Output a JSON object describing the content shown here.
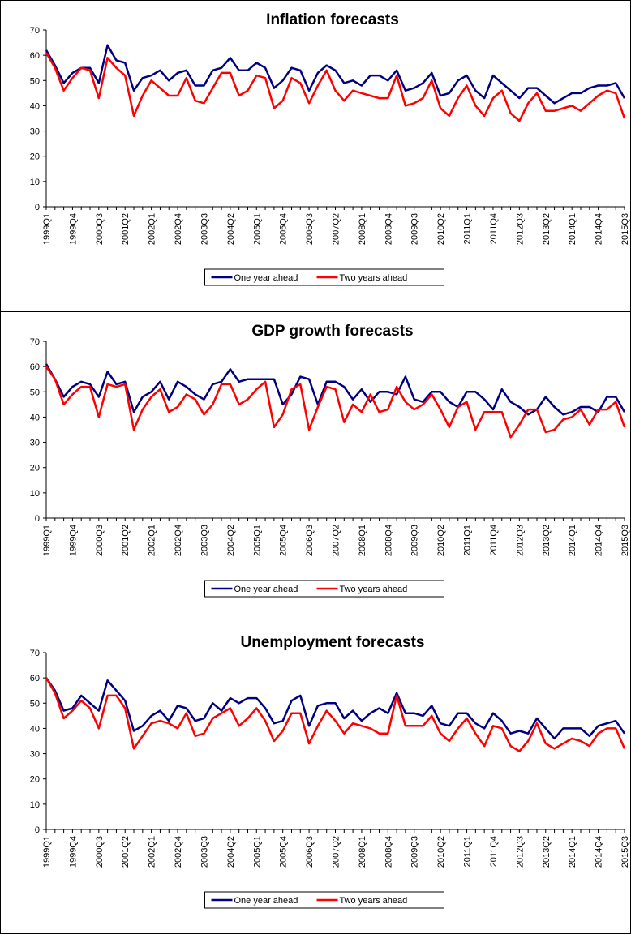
{
  "chart_data": [
    {
      "type": "line",
      "title": "Inflation forecasts",
      "categories": [
        "1999Q1",
        null,
        null,
        "1999Q4",
        null,
        null,
        "2000Q3",
        null,
        null,
        "2001Q2",
        null,
        null,
        "2002Q1",
        null,
        null,
        "2002Q4",
        null,
        null,
        "2003Q3",
        null,
        null,
        "2004Q2",
        null,
        null,
        "2005Q1",
        null,
        null,
        "2005Q4",
        null,
        null,
        "2006Q3",
        null,
        null,
        "2007Q2",
        null,
        null,
        "2008Q1",
        null,
        null,
        "2008Q4",
        null,
        null,
        "2009Q3",
        null,
        null,
        "2010Q2",
        null,
        null,
        "2011Q1",
        null,
        null,
        "2011Q4",
        null,
        null,
        "2012Q3",
        null,
        null,
        "2013Q2",
        null,
        null,
        "2014Q1",
        null,
        null,
        "2014Q4",
        null,
        null,
        "2015Q3"
      ],
      "series": [
        {
          "name": "One year ahead",
          "color": "#000080",
          "values": [
            62,
            56,
            49,
            53,
            55,
            55,
            49,
            64,
            58,
            57,
            46,
            51,
            52,
            54,
            50,
            53,
            54,
            48,
            48,
            54,
            55,
            59,
            54,
            54,
            57,
            55,
            47,
            50,
            55,
            54,
            46,
            53,
            56,
            54,
            49,
            50,
            48,
            52,
            52,
            50,
            54,
            46,
            47,
            49,
            53,
            44,
            45,
            50,
            52,
            46,
            43,
            52,
            49,
            46,
            43,
            47,
            47,
            44,
            41,
            43,
            45,
            45,
            47,
            48,
            48,
            49,
            43
          ]
        },
        {
          "name": "Two years ahead",
          "color": "#ff0000",
          "values": [
            61,
            55,
            46,
            51,
            55,
            54,
            43,
            59,
            55,
            52,
            36,
            44,
            50,
            47,
            44,
            44,
            51,
            42,
            41,
            47,
            53,
            53,
            44,
            46,
            52,
            51,
            39,
            42,
            51,
            49,
            41,
            48,
            54,
            46,
            42,
            46,
            45,
            44,
            43,
            43,
            52,
            40,
            41,
            43,
            50,
            39,
            36,
            43,
            48,
            40,
            36,
            43,
            46,
            37,
            34,
            41,
            45,
            38,
            38,
            39,
            40,
            38,
            41,
            44,
            46,
            45,
            35
          ]
        }
      ],
      "ylim": [
        0,
        70
      ],
      "yticks": [
        0,
        10,
        20,
        30,
        40,
        50,
        60,
        70
      ],
      "grid": false,
      "legend": "bottom"
    },
    {
      "type": "line",
      "title": "GDP growth forecasts",
      "categories": [
        "1999Q1",
        null,
        null,
        "1999Q4",
        null,
        null,
        "2000Q3",
        null,
        null,
        "2001Q2",
        null,
        null,
        "2002Q1",
        null,
        null,
        "2002Q4",
        null,
        null,
        "2003Q3",
        null,
        null,
        "2004Q2",
        null,
        null,
        "2005Q1",
        null,
        null,
        "2005Q4",
        null,
        null,
        "2006Q3",
        null,
        null,
        "2007Q2",
        null,
        null,
        "2008Q1",
        null,
        null,
        "2008Q4",
        null,
        null,
        "2009Q3",
        null,
        null,
        "2010Q2",
        null,
        null,
        "2011Q1",
        null,
        null,
        "2011Q4",
        null,
        null,
        "2012Q3",
        null,
        null,
        "2013Q2",
        null,
        null,
        "2014Q1",
        null,
        null,
        "2014Q4",
        null,
        null,
        "2015Q3"
      ],
      "series": [
        {
          "name": "One year ahead",
          "color": "#000080",
          "values": [
            61,
            55,
            48,
            52,
            54,
            53,
            48,
            58,
            53,
            54,
            42,
            48,
            50,
            54,
            47,
            54,
            52,
            49,
            47,
            53,
            54,
            59,
            54,
            55,
            55,
            55,
            55,
            45,
            49,
            56,
            55,
            45,
            54,
            54,
            52,
            47,
            51,
            46,
            50,
            50,
            49,
            56,
            47,
            46,
            50,
            50,
            46,
            44,
            50,
            50,
            47,
            43,
            51,
            46,
            44,
            41,
            43,
            48,
            44,
            41,
            42,
            44,
            44,
            42,
            48,
            48,
            42
          ]
        },
        {
          "name": "Two years ahead",
          "color": "#ff0000",
          "values": [
            60,
            55,
            45,
            49,
            52,
            52,
            40,
            53,
            52,
            53,
            35,
            43,
            48,
            51,
            42,
            44,
            49,
            47,
            41,
            45,
            53,
            53,
            45,
            47,
            51,
            54,
            36,
            41,
            51,
            53,
            35,
            44,
            52,
            51,
            38,
            45,
            42,
            49,
            42,
            43,
            52,
            46,
            43,
            45,
            49,
            43,
            36,
            44,
            46,
            35,
            42,
            42,
            42,
            32,
            37,
            43,
            43,
            34,
            35,
            39,
            40,
            43,
            37,
            43,
            43,
            46,
            36
          ]
        }
      ],
      "ylim": [
        0,
        70
      ],
      "yticks": [
        0,
        10,
        20,
        30,
        40,
        50,
        60,
        70
      ],
      "grid": false,
      "legend": "bottom"
    },
    {
      "type": "line",
      "title": "Unemployment forecasts",
      "categories": [
        "1999Q1",
        null,
        null,
        "1999Q4",
        null,
        null,
        "2000Q3",
        null,
        null,
        "2001Q2",
        null,
        null,
        "2002Q1",
        null,
        null,
        "2002Q4",
        null,
        null,
        "2003Q3",
        null,
        null,
        "2004Q2",
        null,
        null,
        "2005Q1",
        null,
        null,
        "2005Q4",
        null,
        null,
        "2006Q3",
        null,
        null,
        "2007Q2",
        null,
        null,
        "2008Q1",
        null,
        null,
        "2008Q4",
        null,
        null,
        "2009Q3",
        null,
        null,
        "2010Q2",
        null,
        null,
        "2011Q1",
        null,
        null,
        "2011Q4",
        null,
        null,
        "2012Q3",
        null,
        null,
        "2013Q2",
        null,
        null,
        "2014Q1",
        null,
        null,
        "2014Q4",
        null,
        null,
        "2015Q3"
      ],
      "series": [
        {
          "name": "One year ahead",
          "color": "#000080",
          "values": [
            60,
            55,
            47,
            48,
            53,
            50,
            47,
            59,
            55,
            51,
            39,
            41,
            45,
            47,
            43,
            49,
            48,
            43,
            44,
            50,
            47,
            52,
            50,
            52,
            52,
            48,
            42,
            43,
            51,
            53,
            41,
            49,
            50,
            50,
            44,
            47,
            43,
            46,
            48,
            46,
            54,
            46,
            46,
            45,
            49,
            42,
            41,
            46,
            46,
            42,
            40,
            46,
            43,
            38,
            39,
            38,
            44,
            40,
            36,
            40,
            40,
            40,
            37,
            41,
            42,
            43,
            38
          ]
        },
        {
          "name": "Two years ahead",
          "color": "#ff0000",
          "values": [
            60,
            54,
            44,
            47,
            51,
            48,
            40,
            53,
            53,
            48,
            32,
            37,
            42,
            43,
            42,
            40,
            46,
            37,
            38,
            44,
            46,
            48,
            41,
            44,
            48,
            43,
            35,
            39,
            46,
            46,
            34,
            41,
            47,
            43,
            38,
            42,
            41,
            40,
            38,
            38,
            53,
            41,
            41,
            41,
            45,
            38,
            35,
            40,
            44,
            38,
            33,
            41,
            40,
            33,
            31,
            35,
            42,
            34,
            32,
            34,
            36,
            35,
            33,
            38,
            40,
            40,
            32
          ]
        }
      ],
      "ylim": [
        0,
        70
      ],
      "yticks": [
        0,
        10,
        20,
        30,
        40,
        50,
        60,
        70
      ],
      "grid": false,
      "legend": "bottom"
    }
  ]
}
